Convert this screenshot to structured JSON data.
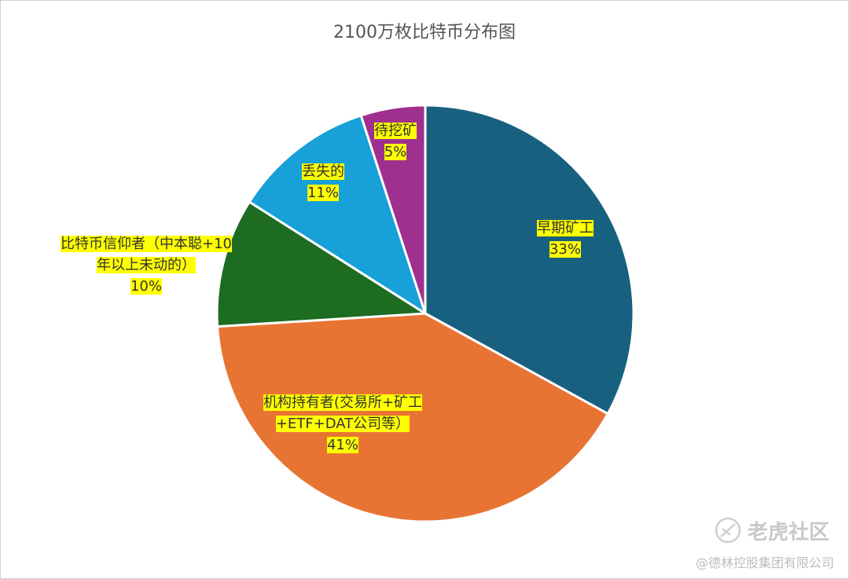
{
  "chart_data": {
    "type": "pie",
    "title": "2100万枚比特币分布图",
    "categories": [
      "早期矿工",
      "机构持有者(交易所+矿工+ETF+DAT公司等）",
      "比特币信仰者（中本聪+10年以上未动的）",
      "丢失的",
      "待挖矿"
    ],
    "values": [
      33,
      41,
      10,
      11,
      5
    ],
    "value_labels": [
      "33%",
      "41%",
      "10%",
      "11%",
      "5%"
    ],
    "colors": [
      "#17607f",
      "#e87433",
      "#1e6b22",
      "#18a0d8",
      "#a0308f"
    ]
  },
  "watermark": {
    "brand": "老虎社区",
    "owner": "@德林控股集团有限公司"
  }
}
